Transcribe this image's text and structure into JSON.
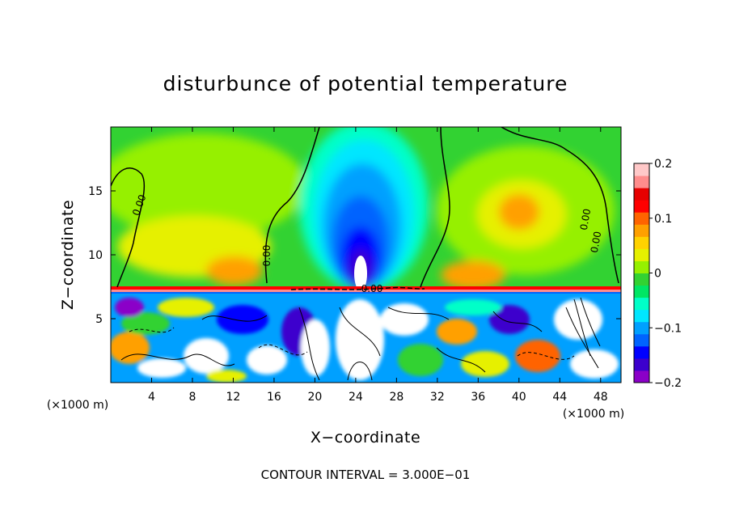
{
  "chart_data": {
    "type": "heatmap",
    "title": "disturbunce of potential temperature",
    "xlabel": "X−coordinate",
    "ylabel": "Z−coordinate",
    "x_unit": "(×1000 m)",
    "y_unit": "(×1000 m)",
    "xlim": [
      0,
      50
    ],
    "ylim": [
      0,
      20
    ],
    "x_ticks": [
      4,
      8,
      12,
      16,
      20,
      24,
      28,
      32,
      36,
      40,
      44,
      48
    ],
    "x_tick_labels": [
      "4",
      "8",
      "12",
      "16",
      "20",
      "24",
      "28",
      "32",
      "36",
      "40",
      "44",
      "48"
    ],
    "y_ticks": [
      5,
      10,
      15
    ],
    "y_tick_labels": [
      "5",
      "10",
      "15"
    ],
    "colorbar": {
      "min": -0.2,
      "max": 0.2,
      "ticks": [
        0.2,
        0.1,
        0,
        -0.1,
        -0.2
      ],
      "tick_labels": [
        "0.2",
        "0.1",
        "0",
        "−0.1",
        "−0.2"
      ],
      "colors": [
        "#8b00c8",
        "#3c00cd",
        "#0000ff",
        "#0064ff",
        "#00a0ff",
        "#00e6ff",
        "#00ffc8",
        "#00e664",
        "#32d232",
        "#96f000",
        "#e6f000",
        "#ffd200",
        "#ffa000",
        "#ff6400",
        "#ff0000",
        "#e60000",
        "#ff8c8c",
        "#ffc8c8"
      ]
    },
    "contour_interval_label": "CONTOUR INTERVAL = 3.000E−01",
    "contour_labels": [
      "0.00",
      "0.00",
      "0.00",
      "0.00",
      "0.00"
    ],
    "inversion_layer_height": 7.2,
    "features": [
      {
        "kind": "cold_plume",
        "x_center": 25,
        "z_top": 19.5,
        "z_bottom": 7.2,
        "min_value": -0.2
      },
      {
        "kind": "warm_region",
        "x_center": 10,
        "z_center": 11,
        "max_value": 0.08
      },
      {
        "kind": "warm_region",
        "x_center": 40,
        "z_center": 13,
        "max_value": 0.1
      },
      {
        "kind": "turbulent_layer",
        "z_range": [
          0,
          7.2
        ]
      }
    ]
  }
}
